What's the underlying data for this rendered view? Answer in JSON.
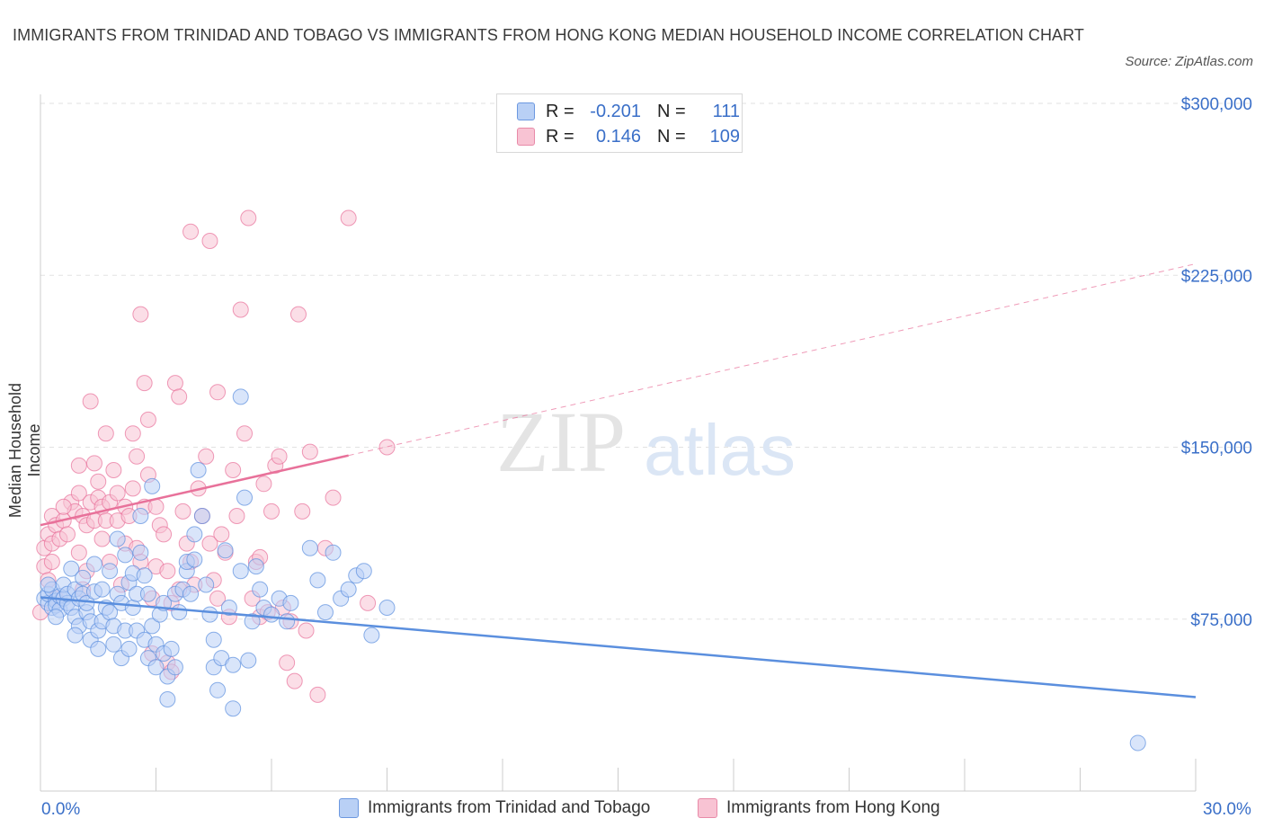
{
  "title": "IMMIGRANTS FROM TRINIDAD AND TOBAGO VS IMMIGRANTS FROM HONG KONG MEDIAN HOUSEHOLD INCOME CORRELATION CHART",
  "source": "Source: ZipAtlas.com",
  "watermark": {
    "zip": "ZIP",
    "atlas": "atlas"
  },
  "legend": {
    "r_label": "R =",
    "n_label": "N =",
    "rows": [
      {
        "r": "-0.201",
        "n": "111",
        "fill": "#b9d0f5",
        "stroke": "#6c98e0"
      },
      {
        "r": "0.146",
        "n": "109",
        "fill": "#f8c3d3",
        "stroke": "#e88aa8"
      }
    ]
  },
  "chart_data": {
    "type": "scatter",
    "title": "IMMIGRANTS FROM TRINIDAD AND TOBAGO VS IMMIGRANTS FROM HONG KONG MEDIAN HOUSEHOLD INCOME CORRELATION CHART",
    "xlabel": "",
    "ylabel": "Median Household Income",
    "x_tick_labels": [
      "0.0%",
      "30.0%"
    ],
    "y_tick_labels": [
      "$75,000",
      "$150,000",
      "$225,000",
      "$300,000"
    ],
    "y_ticks": [
      75000,
      150000,
      225000,
      300000
    ],
    "xlim": [
      0,
      30
    ],
    "ylim": [
      0,
      300000
    ],
    "grid": true,
    "legend_position": "bottom",
    "series": [
      {
        "name": "Immigrants from Trinidad and Tobago",
        "color": "#5b8fde",
        "fill": "#b9d0f5",
        "trend": {
          "x": [
            0,
            30
          ],
          "y": [
            84500,
            41000
          ],
          "dashed_from": null
        },
        "points": [
          [
            0.1,
            84000
          ],
          [
            0.2,
            82000
          ],
          [
            0.2,
            86000
          ],
          [
            0.3,
            80000
          ],
          [
            0.3,
            88000
          ],
          [
            0.4,
            83000
          ],
          [
            0.4,
            81000
          ],
          [
            0.5,
            85000
          ],
          [
            0.5,
            79000
          ],
          [
            0.6,
            84000
          ],
          [
            0.6,
            90000
          ],
          [
            0.7,
            82000
          ],
          [
            0.7,
            86000
          ],
          [
            0.8,
            80000
          ],
          [
            0.8,
            97000
          ],
          [
            0.9,
            76000
          ],
          [
            0.9,
            88000
          ],
          [
            1.0,
            84000
          ],
          [
            1.0,
            72000
          ],
          [
            1.1,
            93000
          ],
          [
            1.1,
            86000
          ],
          [
            1.2,
            78000
          ],
          [
            1.2,
            82000
          ],
          [
            1.3,
            74000
          ],
          [
            1.3,
            66000
          ],
          [
            1.4,
            87000
          ],
          [
            1.4,
            99000
          ],
          [
            1.5,
            70000
          ],
          [
            1.5,
            62000
          ],
          [
            1.6,
            88000
          ],
          [
            1.6,
            74000
          ],
          [
            1.7,
            80000
          ],
          [
            1.8,
            78000
          ],
          [
            1.8,
            96000
          ],
          [
            1.9,
            72000
          ],
          [
            1.9,
            64000
          ],
          [
            2.0,
            86000
          ],
          [
            2.0,
            110000
          ],
          [
            2.1,
            82000
          ],
          [
            2.1,
            58000
          ],
          [
            2.2,
            103000
          ],
          [
            2.2,
            70000
          ],
          [
            2.3,
            91000
          ],
          [
            2.3,
            62000
          ],
          [
            2.4,
            80000
          ],
          [
            2.4,
            95000
          ],
          [
            2.5,
            86000
          ],
          [
            2.5,
            70000
          ],
          [
            2.6,
            104000
          ],
          [
            2.6,
            120000
          ],
          [
            2.7,
            66000
          ],
          [
            2.7,
            94000
          ],
          [
            2.8,
            86000
          ],
          [
            2.8,
            58000
          ],
          [
            2.9,
            72000
          ],
          [
            2.9,
            133000
          ],
          [
            3.0,
            64000
          ],
          [
            3.0,
            54000
          ],
          [
            3.1,
            77000
          ],
          [
            3.2,
            82000
          ],
          [
            3.2,
            60000
          ],
          [
            3.3,
            50000
          ],
          [
            3.3,
            40000
          ],
          [
            3.4,
            62000
          ],
          [
            3.5,
            86000
          ],
          [
            3.5,
            54000
          ],
          [
            3.6,
            78000
          ],
          [
            3.7,
            88000
          ],
          [
            3.8,
            96000
          ],
          [
            3.8,
            100000
          ],
          [
            3.9,
            86000
          ],
          [
            4.0,
            101000
          ],
          [
            4.0,
            112000
          ],
          [
            4.1,
            140000
          ],
          [
            4.2,
            120000
          ],
          [
            4.3,
            90000
          ],
          [
            4.4,
            77000
          ],
          [
            4.5,
            66000
          ],
          [
            4.5,
            54000
          ],
          [
            4.6,
            44000
          ],
          [
            4.7,
            58000
          ],
          [
            4.8,
            105000
          ],
          [
            4.9,
            80000
          ],
          [
            5.0,
            36000
          ],
          [
            5.0,
            55000
          ],
          [
            5.2,
            96000
          ],
          [
            5.2,
            172000
          ],
          [
            5.3,
            128000
          ],
          [
            5.4,
            57000
          ],
          [
            5.5,
            74000
          ],
          [
            5.6,
            98000
          ],
          [
            5.7,
            88000
          ],
          [
            5.8,
            80000
          ],
          [
            6.0,
            77000
          ],
          [
            6.2,
            84000
          ],
          [
            6.4,
            74000
          ],
          [
            6.5,
            82000
          ],
          [
            7.0,
            106000
          ],
          [
            7.2,
            92000
          ],
          [
            7.4,
            78000
          ],
          [
            7.6,
            104000
          ],
          [
            7.8,
            84000
          ],
          [
            8.0,
            88000
          ],
          [
            8.2,
            94000
          ],
          [
            8.4,
            96000
          ],
          [
            8.6,
            68000
          ],
          [
            9.0,
            80000
          ],
          [
            28.5,
            21000
          ],
          [
            0.2,
            90000
          ],
          [
            0.4,
            76000
          ],
          [
            0.9,
            68000
          ]
        ]
      },
      {
        "name": "Immigrants from Hong Kong",
        "color": "#e8719a",
        "fill": "#f8c3d3",
        "trend": {
          "x": [
            0,
            30
          ],
          "y": [
            116000,
            230000
          ],
          "dashed_from": 8.0
        },
        "points": [
          [
            0.0,
            78000
          ],
          [
            0.1,
            98000
          ],
          [
            0.1,
            106000
          ],
          [
            0.2,
            112000
          ],
          [
            0.2,
            92000
          ],
          [
            0.3,
            120000
          ],
          [
            0.3,
            108000
          ],
          [
            0.4,
            84000
          ],
          [
            0.4,
            116000
          ],
          [
            0.5,
            110000
          ],
          [
            0.6,
            118000
          ],
          [
            0.7,
            112000
          ],
          [
            0.8,
            126000
          ],
          [
            0.9,
            122000
          ],
          [
            1.0,
            130000
          ],
          [
            1.0,
            104000
          ],
          [
            1.0,
            142000
          ],
          [
            1.1,
            120000
          ],
          [
            1.2,
            116000
          ],
          [
            1.2,
            96000
          ],
          [
            1.3,
            126000
          ],
          [
            1.3,
            170000
          ],
          [
            1.4,
            118000
          ],
          [
            1.4,
            143000
          ],
          [
            1.5,
            135000
          ],
          [
            1.5,
            128000
          ],
          [
            1.6,
            124000
          ],
          [
            1.6,
            110000
          ],
          [
            1.7,
            156000
          ],
          [
            1.7,
            118000
          ],
          [
            1.8,
            126000
          ],
          [
            1.8,
            100000
          ],
          [
            1.9,
            140000
          ],
          [
            2.0,
            118000
          ],
          [
            2.0,
            130000
          ],
          [
            2.1,
            90000
          ],
          [
            2.2,
            124000
          ],
          [
            2.2,
            108000
          ],
          [
            2.3,
            120000
          ],
          [
            2.4,
            156000
          ],
          [
            2.4,
            132000
          ],
          [
            2.5,
            146000
          ],
          [
            2.5,
            106000
          ],
          [
            2.6,
            100000
          ],
          [
            2.6,
            208000
          ],
          [
            2.7,
            124000
          ],
          [
            2.7,
            178000
          ],
          [
            2.8,
            162000
          ],
          [
            2.8,
            138000
          ],
          [
            2.9,
            84000
          ],
          [
            3.0,
            124000
          ],
          [
            3.0,
            98000
          ],
          [
            3.1,
            116000
          ],
          [
            3.2,
            112000
          ],
          [
            3.3,
            96000
          ],
          [
            3.3,
            56000
          ],
          [
            3.4,
            52000
          ],
          [
            3.5,
            178000
          ],
          [
            3.6,
            172000
          ],
          [
            3.6,
            88000
          ],
          [
            3.7,
            122000
          ],
          [
            3.8,
            108000
          ],
          [
            3.9,
            244000
          ],
          [
            3.9,
            100000
          ],
          [
            4.0,
            90000
          ],
          [
            4.1,
            132000
          ],
          [
            4.2,
            120000
          ],
          [
            4.3,
            146000
          ],
          [
            4.4,
            240000
          ],
          [
            4.4,
            108000
          ],
          [
            4.5,
            92000
          ],
          [
            4.6,
            174000
          ],
          [
            4.7,
            112000
          ],
          [
            4.8,
            104000
          ],
          [
            4.9,
            76000
          ],
          [
            5.0,
            140000
          ],
          [
            5.1,
            120000
          ],
          [
            5.2,
            210000
          ],
          [
            5.3,
            156000
          ],
          [
            5.4,
            250000
          ],
          [
            5.5,
            84000
          ],
          [
            5.6,
            100000
          ],
          [
            5.7,
            76000
          ],
          [
            5.8,
            134000
          ],
          [
            5.9,
            78000
          ],
          [
            6.0,
            122000
          ],
          [
            6.1,
            142000
          ],
          [
            6.2,
            146000
          ],
          [
            6.3,
            80000
          ],
          [
            6.4,
            56000
          ],
          [
            6.5,
            74000
          ],
          [
            6.6,
            48000
          ],
          [
            6.7,
            208000
          ],
          [
            6.8,
            122000
          ],
          [
            7.0,
            148000
          ],
          [
            7.2,
            42000
          ],
          [
            7.4,
            106000
          ],
          [
            7.6,
            128000
          ],
          [
            8.0,
            250000
          ],
          [
            8.5,
            82000
          ],
          [
            9.0,
            150000
          ],
          [
            0.6,
            124000
          ],
          [
            1.1,
            88000
          ],
          [
            2.9,
            60000
          ],
          [
            3.4,
            82000
          ],
          [
            4.6,
            84000
          ],
          [
            5.7,
            102000
          ],
          [
            6.9,
            70000
          ],
          [
            0.3,
            100000
          ]
        ]
      }
    ]
  },
  "bottom_legend": [
    "Immigrants from Trinidad and Tobago",
    "Immigrants from Hong Kong"
  ]
}
